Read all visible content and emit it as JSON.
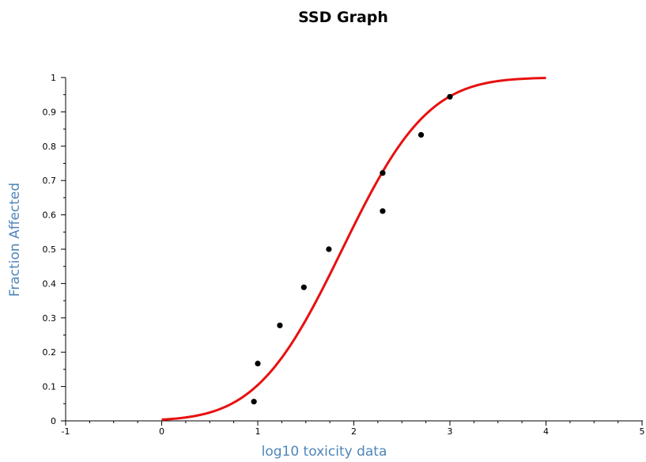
{
  "chart_data": {
    "type": "scatter",
    "title": "SSD Graph",
    "xlabel": "log10 toxicity data",
    "ylabel": "Fraction Affected",
    "xlim": [
      -1,
      5
    ],
    "ylim": [
      0,
      1
    ],
    "x_ticks": [
      "-1",
      "0",
      "1",
      "2",
      "3",
      "4",
      "5"
    ],
    "y_ticks": [
      "0",
      "0.1",
      "0.2",
      "0.3",
      "0.4",
      "0.5",
      "0.6",
      "0.7",
      "0.8",
      "0.9",
      "1"
    ],
    "grid": false,
    "series": [
      {
        "kind": "points",
        "points": [
          {
            "x": 0.96,
            "y": 0.056
          },
          {
            "x": 1.0,
            "y": 0.167
          },
          {
            "x": 1.23,
            "y": 0.278
          },
          {
            "x": 1.48,
            "y": 0.389
          },
          {
            "x": 1.74,
            "y": 0.5
          },
          {
            "x": 2.3,
            "y": 0.611
          },
          {
            "x": 2.3,
            "y": 0.722
          },
          {
            "x": 2.7,
            "y": 0.833
          },
          {
            "x": 3.0,
            "y": 0.944
          }
        ]
      },
      {
        "kind": "fitted-curve",
        "distribution": "normal-cdf",
        "mean": 1.88,
        "sd": 0.7,
        "x_range": [
          0,
          4
        ]
      }
    ],
    "colors": {
      "points": "#000000",
      "curve": "#e81010",
      "axis_label": "#4f86b8",
      "axis": "#000000"
    }
  }
}
